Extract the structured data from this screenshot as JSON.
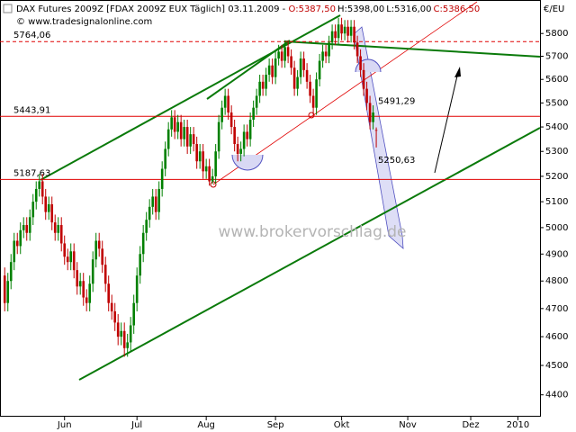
{
  "chart_data": {
    "type": "candlestick",
    "title": "DAX Futures 2009Z [FDAX 2009Z EUX  Täglich] 03.11.2009 -",
    "ohlc_labels": [
      "O:5387,50",
      "H:5398,00",
      "L:5316,00",
      "C:5386,50"
    ],
    "source": "© www.tradesignalonline.com",
    "watermark": "www.brokervorschlag.de",
    "unit_label": "€/EU",
    "up_color": "#008000",
    "down_color": "#c00000",
    "log_y": true,
    "ylim": [
      4330,
      5930
    ],
    "yticks": [
      4400,
      4500,
      4600,
      4700,
      4800,
      4900,
      5000,
      5100,
      5200,
      5300,
      5400,
      5500,
      5600,
      5700,
      5800
    ],
    "xlim": [
      -1.5,
      170
    ],
    "xticks": [
      {
        "value": 19,
        "label": "Jun"
      },
      {
        "value": 42,
        "label": "Jul"
      },
      {
        "value": 64,
        "label": "Aug"
      },
      {
        "value": 86,
        "label": "Sep"
      },
      {
        "value": 107,
        "label": "Okt"
      },
      {
        "value": 128,
        "label": "Nov"
      },
      {
        "value": 148,
        "label": "Dez"
      },
      {
        "value": 163,
        "label": "2010"
      }
    ],
    "hlines": [
      {
        "value": 5764.06,
        "label": "5764,06",
        "dashed": true
      },
      {
        "value": 5443.91,
        "label": "5443,91",
        "dashed": false
      },
      {
        "value": 5187.63,
        "label": "5187,63",
        "dashed": false
      }
    ],
    "annotations": [
      {
        "value": 5491.29,
        "label": "5491,29"
      },
      {
        "value": 5250.63,
        "label": "5250,63"
      }
    ],
    "open": [
      4820,
      4720,
      4800,
      4870,
      4950,
      4930,
      4990,
      5010,
      4980,
      5040,
      5100,
      5150,
      5180,
      5120,
      5060,
      5090,
      5020,
      4980,
      5010,
      4940,
      4890,
      4870,
      4910,
      4840,
      4780,
      4800,
      4740,
      4720,
      4790,
      4880,
      4950,
      4920,
      4860,
      4790,
      4720,
      4690,
      4650,
      4600,
      4620,
      4560,
      4580,
      4640,
      4720,
      4820,
      4900,
      4980,
      5030,
      5080,
      5120,
      5060,
      5150,
      5230,
      5310,
      5390,
      5440,
      5380,
      5420,
      5350,
      5400,
      5320,
      5370,
      5330,
      5260,
      5300,
      5220,
      5240,
      5180,
      5200,
      5300,
      5420,
      5480,
      5530,
      5460,
      5400,
      5330,
      5290,
      5310,
      5380,
      5350,
      5430,
      5480,
      5530,
      5590,
      5560,
      5620,
      5660,
      5610,
      5690,
      5720,
      5680,
      5740,
      5700,
      5650,
      5560,
      5610,
      5690,
      5640,
      5590,
      5530,
      5480,
      5600,
      5680,
      5720,
      5700,
      5760,
      5810,
      5780,
      5840,
      5800,
      5830,
      5790,
      5830,
      5760,
      5700,
      5640,
      5560,
      5500,
      5420,
      5387.5
    ],
    "high": [
      4850,
      4830,
      4900,
      4980,
      4980,
      5020,
      5040,
      5040,
      5070,
      5130,
      5180,
      5210,
      5210,
      5150,
      5120,
      5120,
      5050,
      5040,
      5040,
      4970,
      4920,
      4940,
      4940,
      4870,
      4830,
      4830,
      4770,
      4820,
      4910,
      4980,
      4980,
      4950,
      4890,
      4820,
      4750,
      4720,
      4680,
      4650,
      4650,
      4610,
      4670,
      4750,
      4850,
      4930,
      5010,
      5060,
      5110,
      5150,
      5150,
      5180,
      5260,
      5340,
      5420,
      5470,
      5470,
      5450,
      5450,
      5430,
      5430,
      5400,
      5400,
      5360,
      5330,
      5330,
      5270,
      5270,
      5230,
      5330,
      5450,
      5510,
      5560,
      5560,
      5490,
      5430,
      5360,
      5340,
      5410,
      5410,
      5460,
      5510,
      5560,
      5620,
      5620,
      5650,
      5690,
      5690,
      5720,
      5750,
      5750,
      5770,
      5770,
      5730,
      5680,
      5640,
      5720,
      5720,
      5670,
      5620,
      5560,
      5630,
      5710,
      5750,
      5750,
      5790,
      5840,
      5840,
      5870,
      5870,
      5860,
      5860,
      5860,
      5860,
      5790,
      5730,
      5670,
      5590,
      5530,
      5490,
      5398
    ],
    "low": [
      4690,
      4690,
      4770,
      4840,
      4900,
      4900,
      4960,
      4950,
      4950,
      5010,
      5070,
      5120,
      5090,
      5030,
      5030,
      4990,
      4950,
      4950,
      4910,
      4860,
      4840,
      4840,
      4810,
      4750,
      4750,
      4710,
      4690,
      4690,
      4760,
      4850,
      4890,
      4830,
      4760,
      4690,
      4660,
      4620,
      4570,
      4570,
      4530,
      4530,
      4550,
      4610,
      4690,
      4790,
      4870,
      4950,
      5000,
      5050,
      5030,
      5030,
      5120,
      5200,
      5280,
      5360,
      5350,
      5350,
      5320,
      5320,
      5290,
      5290,
      5300,
      5230,
      5230,
      5190,
      5190,
      5163,
      5170,
      5170,
      5270,
      5390,
      5450,
      5430,
      5370,
      5300,
      5260,
      5260,
      5280,
      5320,
      5320,
      5400,
      5450,
      5500,
      5530,
      5530,
      5590,
      5580,
      5580,
      5660,
      5650,
      5650,
      5670,
      5620,
      5530,
      5530,
      5580,
      5610,
      5560,
      5500,
      5450,
      5450,
      5570,
      5650,
      5670,
      5670,
      5730,
      5750,
      5750,
      5770,
      5770,
      5760,
      5760,
      5730,
      5670,
      5610,
      5530,
      5470,
      5390,
      5390,
      5316
    ],
    "close": [
      4720,
      4800,
      4870,
      4950,
      4930,
      4990,
      5010,
      4980,
      5040,
      5100,
      5150,
      5180,
      5120,
      5060,
      5090,
      5020,
      4980,
      5010,
      4940,
      4890,
      4870,
      4910,
      4840,
      4780,
      4800,
      4740,
      4720,
      4790,
      4880,
      4950,
      4920,
      4860,
      4790,
      4720,
      4690,
      4650,
      4600,
      4620,
      4560,
      4580,
      4640,
      4720,
      4820,
      4900,
      4980,
      5030,
      5080,
      5120,
      5060,
      5150,
      5230,
      5310,
      5390,
      5440,
      5380,
      5420,
      5350,
      5400,
      5320,
      5370,
      5330,
      5260,
      5300,
      5220,
      5240,
      5180,
      5200,
      5300,
      5420,
      5480,
      5530,
      5460,
      5400,
      5330,
      5290,
      5310,
      5380,
      5350,
      5430,
      5480,
      5530,
      5590,
      5560,
      5620,
      5660,
      5610,
      5690,
      5720,
      5680,
      5740,
      5700,
      5650,
      5560,
      5610,
      5690,
      5640,
      5590,
      5530,
      5480,
      5600,
      5680,
      5720,
      5700,
      5760,
      5810,
      5780,
      5840,
      5800,
      5830,
      5790,
      5830,
      5760,
      5700,
      5640,
      5560,
      5500,
      5420,
      5460,
      5386.5
    ]
  }
}
